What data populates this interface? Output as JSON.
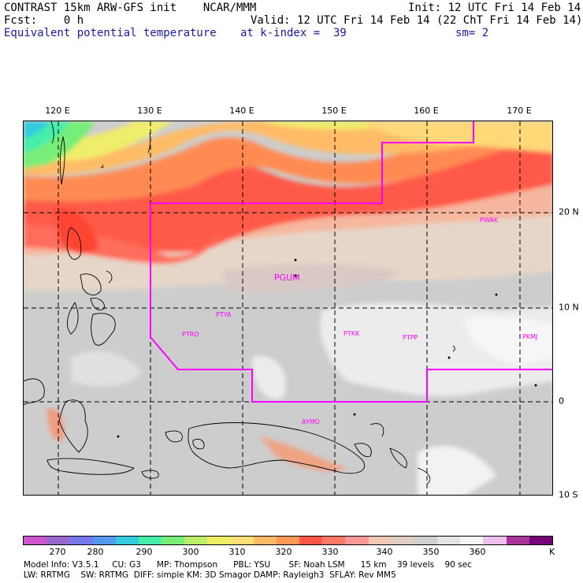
{
  "header": {
    "line1_left": "CONTRAST 15km ARW-GFS init    NCAR/MMM",
    "line1_right": "Init: 12 UTC Fri 14 Feb 14",
    "line2_left": "Fcst:    0 h",
    "line2_right": "Valid: 12 UTC Fri 14 Feb 14 (22 ChT Fri 14 Feb 14)",
    "line3_field": "Equivalent potential temperature",
    "line3_level": "at k-index =  39",
    "line3_sm": "sm= 2"
  },
  "map": {
    "lon_labels": [
      "120 E",
      "130 E",
      "140 E",
      "150 E",
      "160 E",
      "170 E"
    ],
    "lat_labels": [
      "20 N",
      "10 N",
      "0",
      "10 S"
    ],
    "stations": [
      "PWAK",
      "PGUM",
      "PTYA",
      "PTRO",
      "PTKK",
      "PTPP",
      "PKMJ",
      "AYMO"
    ],
    "boundary_color": "#ff00ff",
    "grid_style": "dashed"
  },
  "colorbar": {
    "colors": [
      "#cc55cc",
      "#9966cc",
      "#7777ee",
      "#5599ee",
      "#33ccdd",
      "#44eeaa",
      "#77ee77",
      "#bbee66",
      "#eeee66",
      "#ffdd77",
      "#ffbb66",
      "#ff9955",
      "#ff5544",
      "#ff7766",
      "#ff9999",
      "#f2c9b4",
      "#e0cfc4",
      "#cfcfcf",
      "#e4e4e4",
      "#f4f4f4",
      "#eec0ee",
      "#aa3399",
      "#770077"
    ],
    "ticks": [
      "270",
      "280",
      "290",
      "300",
      "310",
      "320",
      "330",
      "340",
      "350",
      "360"
    ],
    "unit": "K"
  },
  "footer": {
    "line1": "Model Info: V3.5.1     CU: G3      MP: Thompson      PBL: YSU       SF: Noah LSM      15 km    39 levels    90 sec",
    "line2": "LW: RRTMG    SW: RRTMG  DIFF: simple KM: 3D Smagor DAMP: Rayleigh3  SFLAY: Rev MM5"
  }
}
